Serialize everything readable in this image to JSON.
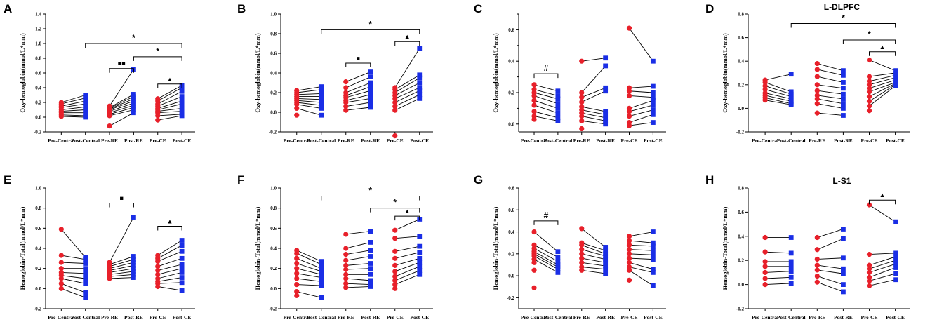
{
  "figure": {
    "categories": [
      "Pre-Central",
      "Post-Central",
      "Pre-RE",
      "Post-RE",
      "Pre-CE",
      "Post-CE"
    ],
    "colors": {
      "pre": "#e8202a",
      "post": "#1a2ee6",
      "line": "#000000"
    }
  },
  "chart_data": [
    {
      "type": "scatter",
      "letter": "A",
      "title": "",
      "ylabel": "Oxy-hemoglobin(mmol/L*mm)",
      "ylim": [
        -0.2,
        1.4
      ],
      "ytick_values": [
        -0.2,
        0,
        0.2,
        0.4,
        0.6,
        0.8,
        1.0,
        1.2,
        1.4
      ],
      "ytick_labels": [
        "-0.2",
        "0.0",
        "0.2",
        "0.4",
        "0.6",
        "0.8",
        "1.0",
        "1.2",
        "1.4"
      ],
      "categories": [
        "Pre-Central",
        "Post-Central",
        "Pre-RE",
        "Post-RE",
        "Pre-CE",
        "Post-CE"
      ],
      "groups": [
        {
          "pre": [
            0.2,
            0.18,
            0.15,
            0.13,
            0.1,
            0.08,
            0.06,
            0.03,
            0.01
          ],
          "post": [
            0.3,
            0.26,
            0.22,
            0.18,
            0.14,
            0.1,
            0.06,
            0.02,
            0.0
          ]
        },
        {
          "pre": [
            0.15,
            0.13,
            0.12,
            0.11,
            0.1,
            0.08,
            0.06,
            0.04,
            0.02,
            -0.12
          ],
          "post": [
            0.65,
            0.31,
            0.28,
            0.25,
            0.22,
            0.19,
            0.16,
            0.13,
            0.1,
            0.06
          ]
        },
        {
          "pre": [
            0.25,
            0.22,
            0.18,
            0.15,
            0.12,
            0.1,
            0.08,
            0.06,
            0.02,
            -0.04
          ],
          "post": [
            0.43,
            0.4,
            0.35,
            0.28,
            0.22,
            0.18,
            0.12,
            0.08,
            0.04,
            0.02
          ]
        }
      ],
      "brackets": [
        {
          "from": 1,
          "to": 5,
          "y": 1.0,
          "label": "*"
        },
        {
          "from": 3,
          "to": 5,
          "y": 0.82,
          "label": "*"
        },
        {
          "from": 2,
          "to": 3,
          "y": 0.66,
          "label": "■■"
        },
        {
          "from": 4,
          "to": 5,
          "y": 0.45,
          "label": "▲"
        }
      ]
    },
    {
      "type": "scatter",
      "letter": "B",
      "title": "",
      "ylabel": "Oxy-hemoglobin(mmol/L*mm)",
      "ylim": [
        -0.2,
        1.0
      ],
      "ytick_values": [
        -0.2,
        0,
        0.2,
        0.4,
        0.6,
        0.8,
        1.0
      ],
      "ytick_labels": [
        "-0.2",
        "0.0",
        "0.2",
        "0.4",
        "0.6",
        "0.8",
        "1.0"
      ],
      "categories": [
        "Pre-Central",
        "Post-Central",
        "Pre-RE",
        "Post-RE",
        "Pre-CE",
        "Post-CE"
      ],
      "groups": [
        {
          "pre": [
            0.22,
            0.2,
            0.18,
            0.16,
            0.14,
            0.12,
            0.1,
            0.08,
            0.04,
            -0.03
          ],
          "post": [
            0.26,
            0.23,
            0.19,
            0.16,
            0.13,
            0.1,
            0.07,
            0.04,
            -0.03
          ]
        },
        {
          "pre": [
            0.31,
            0.25,
            0.2,
            0.17,
            0.15,
            0.12,
            0.1,
            0.06,
            0.02
          ],
          "post": [
            0.41,
            0.36,
            0.3,
            0.26,
            0.22,
            0.18,
            0.14,
            0.1,
            0.05
          ]
        },
        {
          "pre": [
            0.25,
            0.23,
            0.2,
            0.17,
            0.14,
            0.1,
            0.06,
            0.02,
            -0.24
          ],
          "post": [
            0.65,
            0.38,
            0.35,
            0.3,
            0.25,
            0.22,
            0.18,
            0.14
          ]
        }
      ],
      "brackets": [
        {
          "from": 1,
          "to": 5,
          "y": 0.84,
          "label": "*"
        },
        {
          "from": 4,
          "to": 5,
          "y": 0.72,
          "label": "▲"
        },
        {
          "from": 2,
          "to": 3,
          "y": 0.5,
          "label": "■"
        }
      ]
    },
    {
      "type": "scatter",
      "letter": "C",
      "title": "",
      "ylabel": "Oxy-hemoglobin(mmol/L*mm)",
      "ylim": [
        -0.05,
        0.7
      ],
      "ytick_values": [
        0,
        0.2,
        0.4,
        0.6
      ],
      "ytick_labels": [
        "0.0",
        "0.2",
        "0.4",
        "0.6"
      ],
      "ytick_minor": [
        0.1,
        0.3,
        0.5,
        0.7
      ],
      "categories": [
        "Pre-Central",
        "Post-Central",
        "Pre-RE",
        "Post-RE",
        "Pre-CE",
        "Post-CE"
      ],
      "groups": [
        {
          "pre": [
            0.25,
            0.22,
            0.2,
            0.18,
            0.15,
            0.12,
            0.08,
            0.05,
            0.03
          ],
          "post": [
            0.21,
            0.18,
            0.16,
            0.13,
            0.1,
            0.07,
            0.04,
            0.02
          ]
        },
        {
          "pre": [
            0.4,
            0.2,
            0.17,
            0.14,
            0.11,
            0.09,
            0.07,
            0.05,
            0.02,
            -0.03
          ],
          "post": [
            0.42,
            0.37,
            0.23,
            0.21,
            0.08,
            0.06,
            0.04,
            0.02,
            0.0
          ]
        },
        {
          "pre": [
            0.61,
            0.23,
            0.21,
            0.18,
            0.1,
            0.08,
            0.05,
            0.01,
            -0.01
          ],
          "post": [
            0.4,
            0.24,
            0.2,
            0.17,
            0.15,
            0.12,
            0.09,
            0.06,
            0.01
          ]
        }
      ],
      "brackets": [
        {
          "from": 0,
          "to": 1,
          "y": 0.32,
          "label": "#"
        }
      ]
    },
    {
      "type": "scatter",
      "letter": "D",
      "title": "L-DLPFC",
      "ylabel": "Oxy-hemoglobin(mmol/L*mm)",
      "ylim": [
        -0.2,
        0.8
      ],
      "ytick_values": [
        -0.2,
        0,
        0.2,
        0.4,
        0.6,
        0.8
      ],
      "ytick_labels": [
        "-0.2",
        "0.0",
        "0.2",
        "0.4",
        "0.6",
        "0.8"
      ],
      "categories": [
        "Pre-Central",
        "Post-Central",
        "Pre-RE",
        "Post-RE",
        "Pre-CE",
        "Post-CE"
      ],
      "groups": [
        {
          "pre": [
            0.24,
            0.22,
            0.19,
            0.16,
            0.13,
            0.11,
            0.09,
            0.07
          ],
          "post": [
            0.29,
            0.14,
            0.12,
            0.1,
            0.08,
            0.06,
            0.04,
            0.03
          ]
        },
        {
          "pre": [
            0.38,
            0.33,
            0.27,
            0.2,
            0.15,
            0.11,
            0.08,
            0.04,
            -0.04
          ],
          "post": [
            0.32,
            0.28,
            0.22,
            0.17,
            0.12,
            0.08,
            0.04,
            0.0,
            -0.06
          ]
        },
        {
          "pre": [
            0.41,
            0.27,
            0.23,
            0.2,
            0.17,
            0.14,
            0.1,
            0.06,
            0.02,
            -0.02
          ],
          "post": [
            0.32,
            0.3,
            0.28,
            0.26,
            0.24,
            0.22,
            0.21,
            0.2,
            0.19
          ]
        }
      ],
      "brackets": [
        {
          "from": 1,
          "to": 5,
          "y": 0.72,
          "label": "*"
        },
        {
          "from": 3,
          "to": 5,
          "y": 0.58,
          "label": "*"
        },
        {
          "from": 4,
          "to": 5,
          "y": 0.48,
          "label": "▲"
        }
      ]
    },
    {
      "type": "scatter",
      "letter": "E",
      "title": "",
      "ylabel": "Hemoglobin-Total(mmol/L*mm)",
      "ylim": [
        -0.2,
        1.0
      ],
      "ytick_values": [
        -0.2,
        0,
        0.2,
        0.4,
        0.6,
        0.8,
        1.0
      ],
      "ytick_labels": [
        "-0.2",
        "0.0",
        "0.2",
        "0.4",
        "0.6",
        "0.8",
        "1.0"
      ],
      "categories": [
        "Pre-Central",
        "Post-Central",
        "Pre-RE",
        "Post-RE",
        "Pre-CE",
        "Post-CE"
      ],
      "groups": [
        {
          "pre": [
            0.59,
            0.33,
            0.26,
            0.2,
            0.16,
            0.13,
            0.1,
            0.05,
            0.0
          ],
          "post": [
            0.31,
            0.29,
            0.25,
            0.2,
            0.15,
            0.1,
            0.05,
            -0.04,
            -0.09
          ]
        },
        {
          "pre": [
            0.26,
            0.24,
            0.22,
            0.2,
            0.18,
            0.16,
            0.14,
            0.12,
            0.1
          ],
          "post": [
            0.71,
            0.32,
            0.29,
            0.26,
            0.23,
            0.2,
            0.17,
            0.14,
            0.11
          ]
        },
        {
          "pre": [
            0.33,
            0.3,
            0.27,
            0.22,
            0.18,
            0.14,
            0.1,
            0.07,
            0.05,
            0.02
          ],
          "post": [
            0.48,
            0.43,
            0.37,
            0.3,
            0.24,
            0.2,
            0.16,
            0.11,
            0.06,
            -0.02
          ]
        }
      ],
      "brackets": [
        {
          "from": 2,
          "to": 3,
          "y": 0.85,
          "label": "■"
        },
        {
          "from": 4,
          "to": 5,
          "y": 0.62,
          "label": "▲"
        }
      ]
    },
    {
      "type": "scatter",
      "letter": "F",
      "title": "",
      "ylabel": "Hemoglobin-Total(mmol/L*mm)",
      "ylim": [
        -0.2,
        1.0
      ],
      "ytick_values": [
        -0.2,
        0,
        0.2,
        0.4,
        0.6,
        0.8,
        1.0
      ],
      "ytick_labels": [
        "-0.2",
        "0.0",
        "0.2",
        "0.4",
        "0.6",
        "0.8",
        "1.0"
      ],
      "categories": [
        "Pre-Central",
        "Post-Central",
        "Pre-RE",
        "Post-RE",
        "Pre-CE",
        "Post-CE"
      ],
      "groups": [
        {
          "pre": [
            0.38,
            0.35,
            0.3,
            0.25,
            0.2,
            0.15,
            0.1,
            0.04,
            -0.03,
            -0.07
          ],
          "post": [
            0.27,
            0.24,
            0.2,
            0.17,
            0.14,
            0.11,
            0.07,
            0.03,
            -0.09
          ]
        },
        {
          "pre": [
            0.54,
            0.4,
            0.34,
            0.28,
            0.23,
            0.19,
            0.14,
            0.1,
            0.05,
            0.01
          ],
          "post": [
            0.57,
            0.46,
            0.38,
            0.32,
            0.25,
            0.2,
            0.14,
            0.08,
            0.04,
            0.02
          ]
        },
        {
          "pre": [
            0.58,
            0.5,
            0.37,
            0.3,
            0.23,
            0.17,
            0.12,
            0.08,
            0.04,
            0.0
          ],
          "post": [
            0.69,
            0.52,
            0.42,
            0.36,
            0.3,
            0.26,
            0.22,
            0.18,
            0.14
          ]
        }
      ],
      "brackets": [
        {
          "from": 1,
          "to": 5,
          "y": 0.92,
          "label": "*"
        },
        {
          "from": 3,
          "to": 5,
          "y": 0.8,
          "label": "*"
        },
        {
          "from": 4,
          "to": 5,
          "y": 0.72,
          "label": "▲"
        }
      ]
    },
    {
      "type": "scatter",
      "letter": "G",
      "title": "",
      "ylabel": "Hemoglobin-Total(mmol/L*mm)",
      "ylim": [
        -0.3,
        0.8
      ],
      "ytick_values": [
        -0.2,
        0,
        0.2,
        0.4,
        0.6,
        0.8
      ],
      "ytick_labels": [
        "-0.2",
        "0.0",
        "0.2",
        "0.4",
        "0.6",
        "0.8"
      ],
      "categories": [
        "Pre-Central",
        "Post-Central",
        "Pre-RE",
        "Post-RE",
        "Pre-CE",
        "Post-CE"
      ],
      "groups": [
        {
          "pre": [
            0.4,
            0.28,
            0.25,
            0.22,
            0.2,
            0.18,
            0.15,
            0.12,
            0.05,
            -0.11
          ],
          "post": [
            0.22,
            0.17,
            0.13,
            0.1,
            0.08,
            0.06,
            0.03
          ]
        },
        {
          "pre": [
            0.43,
            0.3,
            0.28,
            0.24,
            0.2,
            0.16,
            0.12,
            0.08,
            0.05
          ],
          "post": [
            0.26,
            0.23,
            0.2,
            0.18,
            0.15,
            0.12,
            0.09,
            0.06,
            0.02
          ]
        },
        {
          "pre": [
            0.36,
            0.32,
            0.28,
            0.24,
            0.2,
            0.16,
            0.12,
            0.08,
            0.05,
            -0.04
          ],
          "post": [
            0.4,
            0.3,
            0.27,
            0.23,
            0.19,
            0.15,
            0.06,
            0.03,
            -0.09
          ]
        }
      ],
      "brackets": [
        {
          "from": 0,
          "to": 1,
          "y": 0.5,
          "label": "#"
        }
      ]
    },
    {
      "type": "scatter",
      "letter": "H",
      "title": "L-S1",
      "ylabel": "Hemoglobin-Total(mmol/L*mm)",
      "ylim": [
        -0.2,
        0.8
      ],
      "ytick_values": [
        -0.2,
        0,
        0.2,
        0.4,
        0.6,
        0.8
      ],
      "ytick_labels": [
        "-0.2",
        "0.0",
        "0.2",
        "0.4",
        "0.6",
        "0.8"
      ],
      "categories": [
        "Pre-Central",
        "Post-Central",
        "Pre-RE",
        "Post-RE",
        "Pre-CE",
        "Post-CE"
      ],
      "groups": [
        {
          "pre": [
            0.39,
            0.27,
            0.19,
            0.15,
            0.1,
            0.05,
            0.0
          ],
          "post": [
            0.39,
            0.26,
            0.19,
            0.15,
            0.11,
            0.06,
            0.01
          ]
        },
        {
          "pre": [
            0.39,
            0.29,
            0.21,
            0.16,
            0.12,
            0.07,
            0.02
          ],
          "post": [
            0.46,
            0.38,
            0.22,
            0.13,
            0.09,
            0.0,
            -0.06
          ]
        },
        {
          "pre": [
            0.66,
            0.25,
            0.16,
            0.13,
            0.1,
            0.06,
            0.03,
            -0.01
          ],
          "post": [
            0.52,
            0.26,
            0.23,
            0.2,
            0.17,
            0.14,
            0.09,
            0.04
          ]
        }
      ],
      "brackets": [
        {
          "from": 4,
          "to": 5,
          "y": 0.7,
          "label": "▲"
        }
      ]
    }
  ]
}
